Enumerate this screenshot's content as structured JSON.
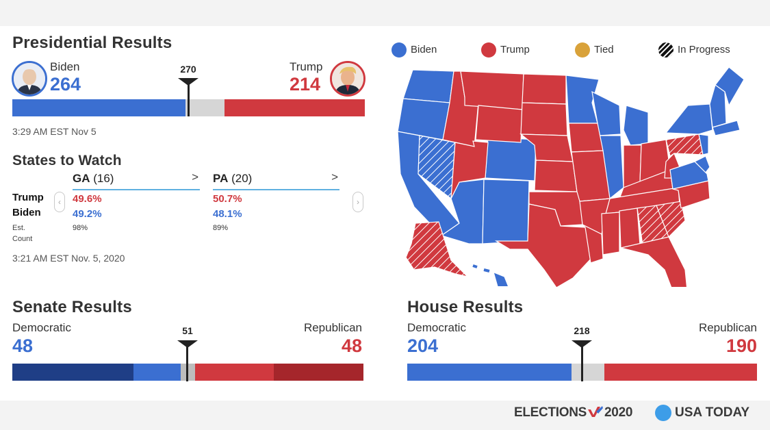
{
  "presidential": {
    "title": "Presidential Results",
    "left": {
      "name": "Biden",
      "votes": "264"
    },
    "right": {
      "name": "Trump",
      "votes": "214"
    },
    "threshold": "270",
    "timestamp": "3:29 AM EST Nov 5",
    "bar": {
      "total": 538,
      "dem": 264,
      "rep": 214,
      "colors": {
        "dem": "#3b6fd1",
        "rep": "#d0393f",
        "undecided": "#d6d6d6"
      }
    }
  },
  "states": {
    "title": "States to Watch",
    "row_labels": {
      "first": "Trump",
      "second": "Biden",
      "count": "Est. Count"
    },
    "cards": [
      {
        "state": "GA",
        "ev": "(16)",
        "trump": "49.6%",
        "biden": "49.2%",
        "count": "98%",
        "chevron": ">"
      },
      {
        "state": "PA",
        "ev": "(20)",
        "trump": "50.7%",
        "biden": "48.1%",
        "count": "89%",
        "chevron": ">"
      }
    ],
    "prev_icon": "chevron-left-icon",
    "next_icon": "chevron-right-icon",
    "timestamp": "3:21 AM EST Nov. 5, 2020"
  },
  "legend": [
    {
      "label": "Biden",
      "color": "#3b6fd1"
    },
    {
      "label": "Trump",
      "color": "#d0393f"
    },
    {
      "label": "Tied",
      "color": "#d9a23a"
    },
    {
      "label": "In Progress",
      "color": "#111111"
    }
  ],
  "senate": {
    "title": "Senate Results",
    "left": {
      "name": "Democratic",
      "seats": "48"
    },
    "right": {
      "name": "Republican",
      "seats": "48"
    },
    "threshold": "51",
    "bar": {
      "total": 100,
      "dem": 48,
      "rep": 48,
      "colors": {
        "dem_holdover": "#1f3e86",
        "dem": "#3b6fd1",
        "undecided": "#bdbdbd",
        "rep": "#d0393f",
        "rep_holdover": "#a5262b"
      }
    }
  },
  "house": {
    "title": "House Results",
    "left": {
      "name": "Democratic",
      "seats": "204"
    },
    "right": {
      "name": "Republican",
      "seats": "190"
    },
    "threshold": "218",
    "bar": {
      "total": 435,
      "dem": 204,
      "rep": 190,
      "colors": {
        "dem": "#3b6fd1",
        "rep": "#d0393f",
        "undecided": "#d6d6d6"
      }
    }
  },
  "footer": {
    "elections_text": "ELECTIONS",
    "year": "2020",
    "brand": "USA TODAY",
    "brand_color": "#3d9de8"
  }
}
